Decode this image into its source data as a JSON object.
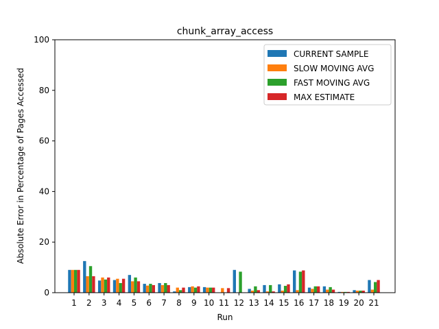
{
  "chart_data": {
    "type": "bar",
    "title": "chunk_array_access",
    "xlabel": "Run",
    "ylabel": "Absolute Error in Percentage of Pages Accessed",
    "ylim": [
      0,
      100
    ],
    "yticks": [
      0,
      20,
      40,
      60,
      80,
      100
    ],
    "grid": false,
    "legend_position": "top-right",
    "categories": [
      "1",
      "2",
      "3",
      "4",
      "5",
      "6",
      "7",
      "8",
      "9",
      "10",
      "11",
      "12",
      "13",
      "14",
      "15",
      "16",
      "17",
      "18",
      "19",
      "20",
      "21"
    ],
    "series": [
      {
        "name": "CURRENT SAMPLE",
        "color": "#1f77b4",
        "values": [
          9.0,
          12.5,
          4.8,
          5.0,
          7.0,
          3.5,
          3.8,
          0.5,
          2.2,
          2.2,
          0.0,
          9.0,
          1.5,
          3.0,
          3.3,
          8.8,
          2.0,
          2.5,
          0.3,
          1.0,
          5.0
        ]
      },
      {
        "name": "SLOW MOVING AVG",
        "color": "#ff7f0e",
        "values": [
          9.0,
          6.5,
          6.0,
          5.5,
          4.5,
          2.8,
          3.0,
          2.0,
          2.5,
          2.0,
          1.8,
          0.0,
          0.8,
          0.5,
          0.8,
          1.0,
          1.5,
          1.2,
          0.3,
          0.8,
          1.2
        ]
      },
      {
        "name": "FAST MOVING AVG",
        "color": "#2ca02c",
        "values": [
          9.0,
          10.5,
          5.2,
          3.8,
          6.0,
          3.5,
          3.8,
          1.0,
          2.0,
          2.0,
          0.0,
          8.3,
          2.5,
          3.0,
          2.7,
          8.3,
          2.5,
          2.2,
          0.3,
          0.8,
          4.2
        ]
      },
      {
        "name": "MAX ESTIMATE",
        "color": "#d62728",
        "values": [
          9.0,
          6.5,
          6.0,
          5.5,
          4.5,
          3.0,
          3.0,
          2.0,
          2.5,
          2.0,
          1.8,
          0.0,
          1.0,
          0.5,
          3.3,
          8.8,
          2.5,
          1.2,
          0.3,
          0.8,
          5.0
        ]
      }
    ]
  }
}
